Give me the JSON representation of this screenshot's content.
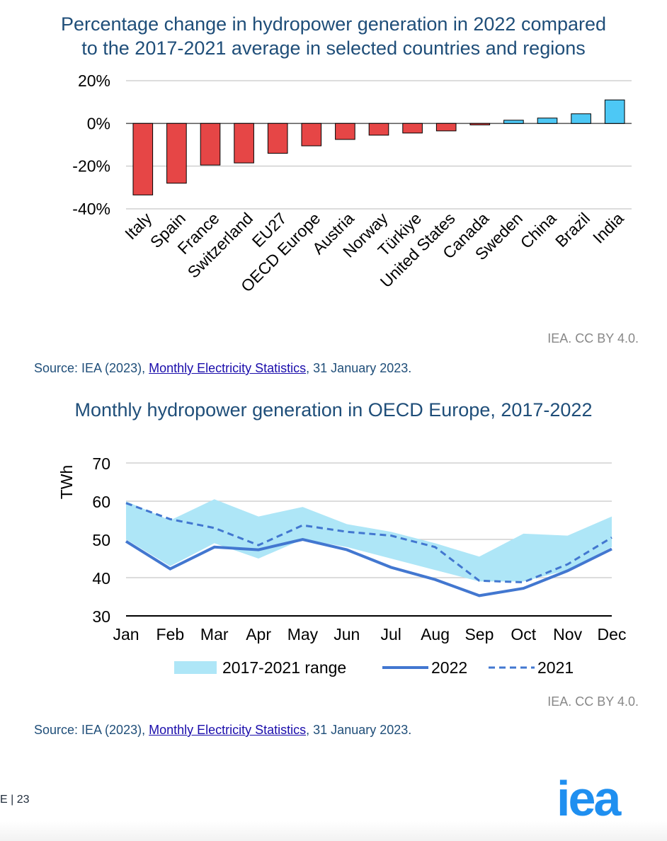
{
  "charts": [
    {
      "type": "bar",
      "title": "Percentage change in hydropower generation in 2022 compared to the 2017-2021 average in selected countries and regions",
      "title_line1": "Percentage change in hydropower generation in 2022 compared",
      "title_line2": "to the 2017-2021 average in selected countries and regions",
      "categories": [
        "Italy",
        "Spain",
        "France",
        "Switzerland",
        "EU27",
        "OECD Europe",
        "Austria",
        "Norway",
        "Türkiye",
        "United States",
        "Canada",
        "Sweden",
        "China",
        "Brazil",
        "India"
      ],
      "values": [
        -33.5,
        -28,
        -19.5,
        -18.5,
        -14,
        -10.5,
        -7.5,
        -5.5,
        -4.5,
        -3.5,
        -0.7,
        1.5,
        2.5,
        4.5,
        11
      ],
      "ylim": [
        -40,
        20
      ],
      "yticks": [
        20,
        0,
        -20,
        -40
      ],
      "ytick_labels": [
        "20%",
        "0%",
        "-20%",
        "-40%"
      ],
      "colors": {
        "negative": "#e64646",
        "positive": "#4dc8f5"
      },
      "credit": "IEA. CC BY 4.0.",
      "source_prefix": "Source: IEA (2023), ",
      "source_link": "Monthly Electricity Statistics",
      "source_suffix": ", 31 January 2023."
    },
    {
      "type": "line",
      "title": "Monthly hydropower generation in OECD Europe, 2017-2022",
      "categories": [
        "Jan",
        "Feb",
        "Mar",
        "Apr",
        "May",
        "Jun",
        "Jul",
        "Aug",
        "Sep",
        "Oct",
        "Nov",
        "Dec"
      ],
      "ylabel": "TWh",
      "ylim": [
        30,
        70
      ],
      "yticks": [
        70,
        60,
        50,
        40,
        30
      ],
      "range": {
        "name": "2017-2021 range",
        "min": [
          50,
          43,
          49,
          45,
          50,
          48,
          45,
          42,
          39,
          39,
          42,
          48
        ],
        "max": [
          60,
          55,
          60.5,
          56,
          58.5,
          54,
          52,
          49,
          45.5,
          51.5,
          51,
          56
        ]
      },
      "series": [
        {
          "name": "2022",
          "values": [
            49.5,
            42.3,
            48,
            47.3,
            50,
            47.3,
            42.7,
            39.5,
            35.3,
            37.2,
            41.8,
            47.5
          ]
        },
        {
          "name": "2021",
          "values": [
            59.5,
            55.3,
            53,
            48.5,
            53.7,
            52,
            51,
            48,
            39.2,
            38.8,
            43.5,
            50.5
          ]
        }
      ],
      "colors": {
        "range": "#aee6f7",
        "line2022": "#4277d0",
        "line2021": "#4277d0"
      },
      "credit": "IEA. CC BY 4.0.",
      "source_prefix": "Source: IEA (2023), ",
      "source_link": "Monthly Electricity Statistics",
      "source_suffix": ", 31 January 2023."
    }
  ],
  "footer": {
    "page": "E | 23",
    "logo": "iea"
  }
}
